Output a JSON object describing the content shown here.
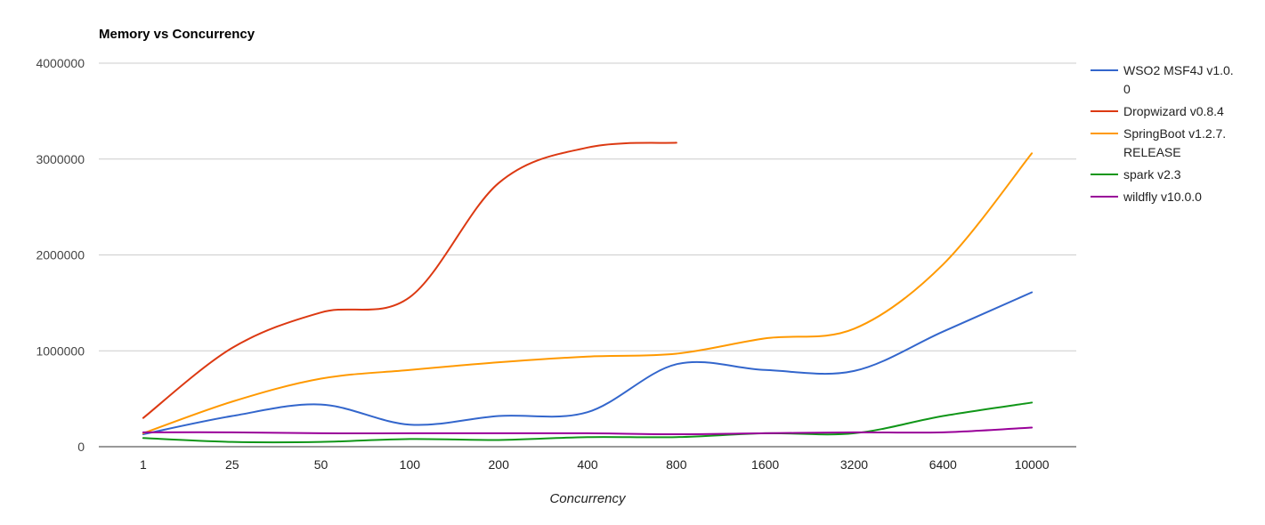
{
  "chart_data": {
    "type": "line",
    "title": "Memory vs Concurrency",
    "xlabel": "Concurrency",
    "ylabel": "",
    "ylim": [
      0,
      4000000
    ],
    "yticks": [
      "0",
      "1000000",
      "2000000",
      "3000000",
      "4000000"
    ],
    "ytick_values": [
      0,
      1000000,
      2000000,
      3000000,
      4000000
    ],
    "categories": [
      "1",
      "25",
      "50",
      "100",
      "200",
      "400",
      "800",
      "1600",
      "3200",
      "6400",
      "10000"
    ],
    "grid": true,
    "legend_position": "right",
    "series": [
      {
        "name": "WSO2 MSF4J v1.0.0",
        "legend_lines": [
          "WSO2 MSF4J v1.0.",
          "0"
        ],
        "color": "#3366cc",
        "values": [
          130000,
          320000,
          440000,
          230000,
          320000,
          360000,
          860000,
          800000,
          790000,
          1200000,
          1610000
        ]
      },
      {
        "name": "Dropwizard v0.8.4",
        "legend_lines": [
          "Dropwizard v0.8.4"
        ],
        "color": "#dc3912",
        "values": [
          300000,
          1030000,
          1400000,
          1560000,
          2750000,
          3120000,
          3170000,
          null,
          null,
          null,
          null
        ]
      },
      {
        "name": "SpringBoot v1.2.7.RELEASE",
        "legend_lines": [
          "SpringBoot v1.2.7.",
          "RELEASE"
        ],
        "color": "#ff9900",
        "values": [
          140000,
          470000,
          710000,
          800000,
          880000,
          940000,
          970000,
          1130000,
          1230000,
          1900000,
          3060000
        ]
      },
      {
        "name": "spark v2.3",
        "legend_lines": [
          "spark v2.3"
        ],
        "color": "#109618",
        "values": [
          90000,
          50000,
          50000,
          80000,
          70000,
          100000,
          100000,
          140000,
          140000,
          320000,
          460000
        ]
      },
      {
        "name": "wildfly v10.0.0",
        "legend_lines": [
          "wildfly v10.0.0"
        ],
        "color": "#990099",
        "values": [
          150000,
          150000,
          140000,
          140000,
          140000,
          140000,
          130000,
          140000,
          150000,
          150000,
          200000
        ]
      }
    ]
  }
}
